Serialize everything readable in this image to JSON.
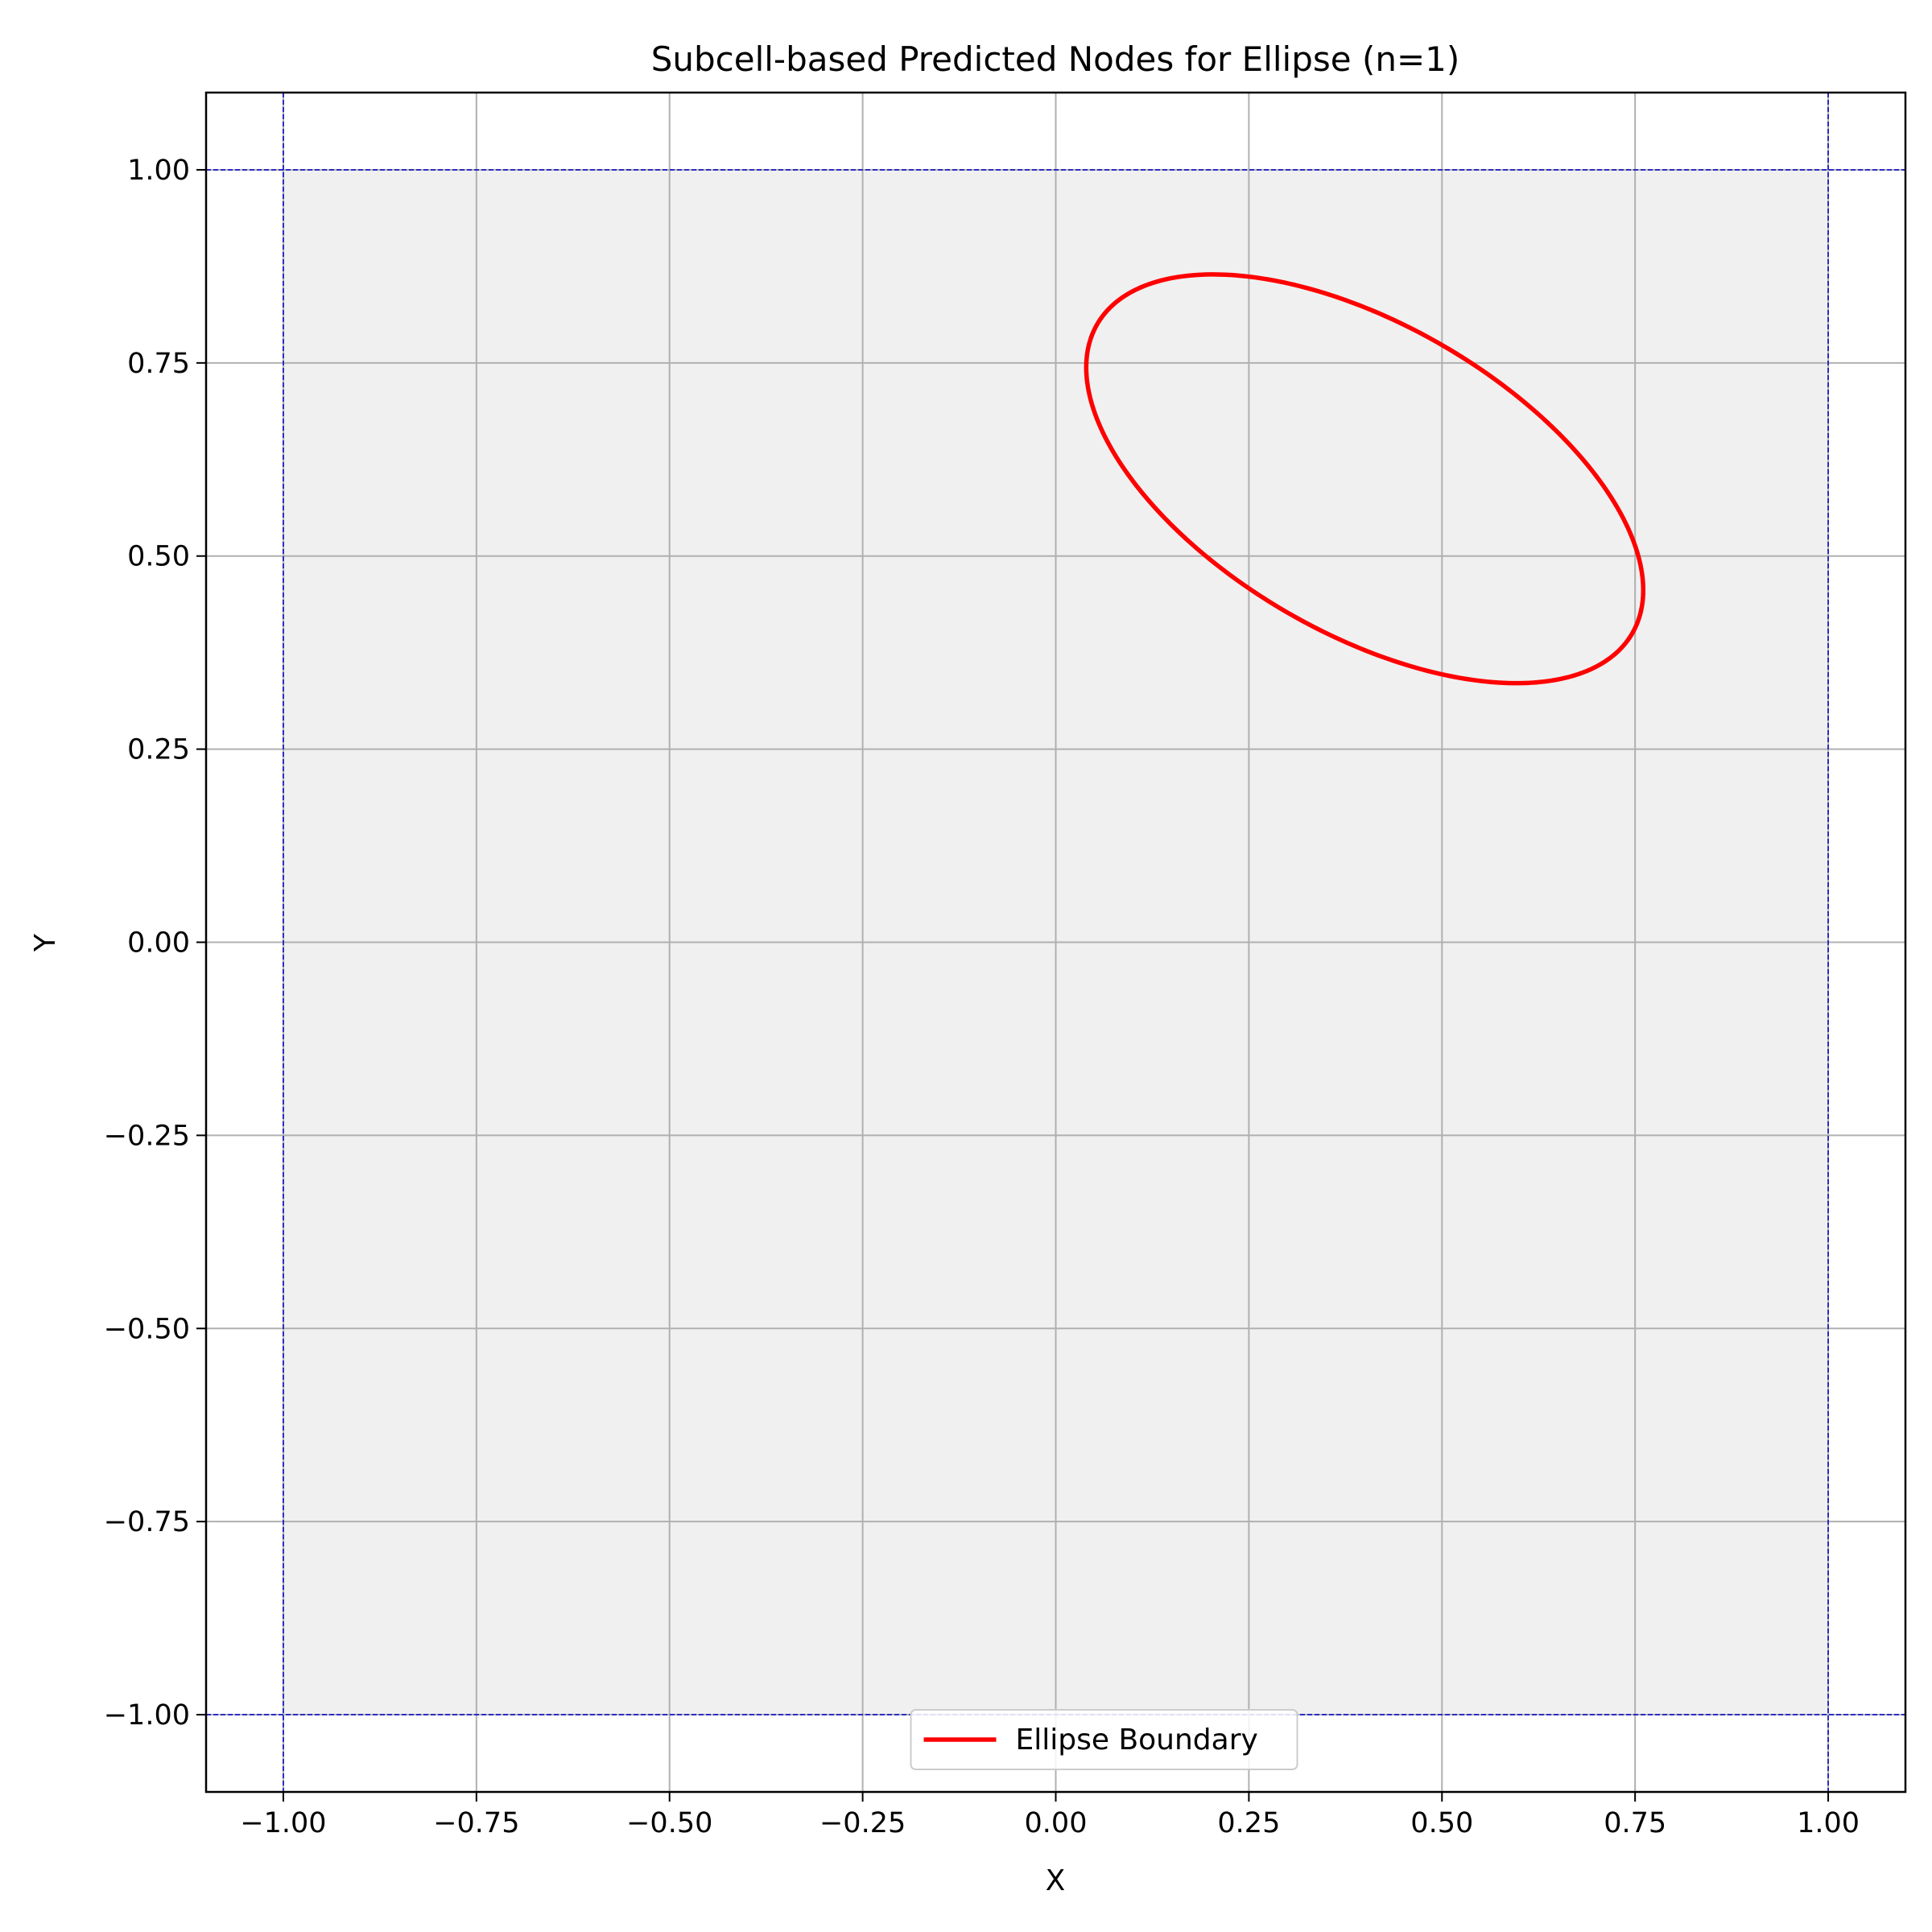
{
  "chart_data": {
    "type": "line",
    "title": "Subcell-based Predicted Nodes for Ellipse (n=1)",
    "xlabel": "X",
    "ylabel": "Y",
    "xlim": [
      -1.1,
      1.1
    ],
    "ylim": [
      -1.1,
      1.1
    ],
    "xticks": [
      -1.0,
      -0.75,
      -0.5,
      -0.25,
      0.0,
      0.25,
      0.5,
      0.75,
      1.0
    ],
    "yticks": [
      -1.0,
      -0.75,
      -0.5,
      -0.25,
      0.0,
      0.25,
      0.5,
      0.75,
      1.0
    ],
    "xtick_labels": [
      "−1.00",
      "−0.75",
      "−0.50",
      "−0.25",
      "0.00",
      "0.25",
      "0.50",
      "0.75",
      "1.00"
    ],
    "ytick_labels": [
      "−1.00",
      "−0.75",
      "−0.50",
      "−0.25",
      "0.00",
      "0.25",
      "0.50",
      "0.75",
      "1.00"
    ],
    "grid": true,
    "domain_box": {
      "x": [
        -1.0,
        1.0
      ],
      "y": [
        -1.0,
        1.0
      ],
      "fill": "#f0f0f0",
      "edge": "#0000cc"
    },
    "series": [
      {
        "name": "Ellipse Boundary",
        "color": "#ff0000",
        "shape": "ellipse",
        "center": [
          0.4,
          0.6
        ],
        "semi_major": 0.4,
        "semi_minor": 0.2,
        "rotation_deg": -30
      }
    ],
    "legend": {
      "position": "lower center",
      "entries": [
        "Ellipse Boundary"
      ]
    },
    "colors": {
      "grid": "#b0b0b0",
      "axes": "#000000",
      "boundary": "#0000cc"
    }
  }
}
